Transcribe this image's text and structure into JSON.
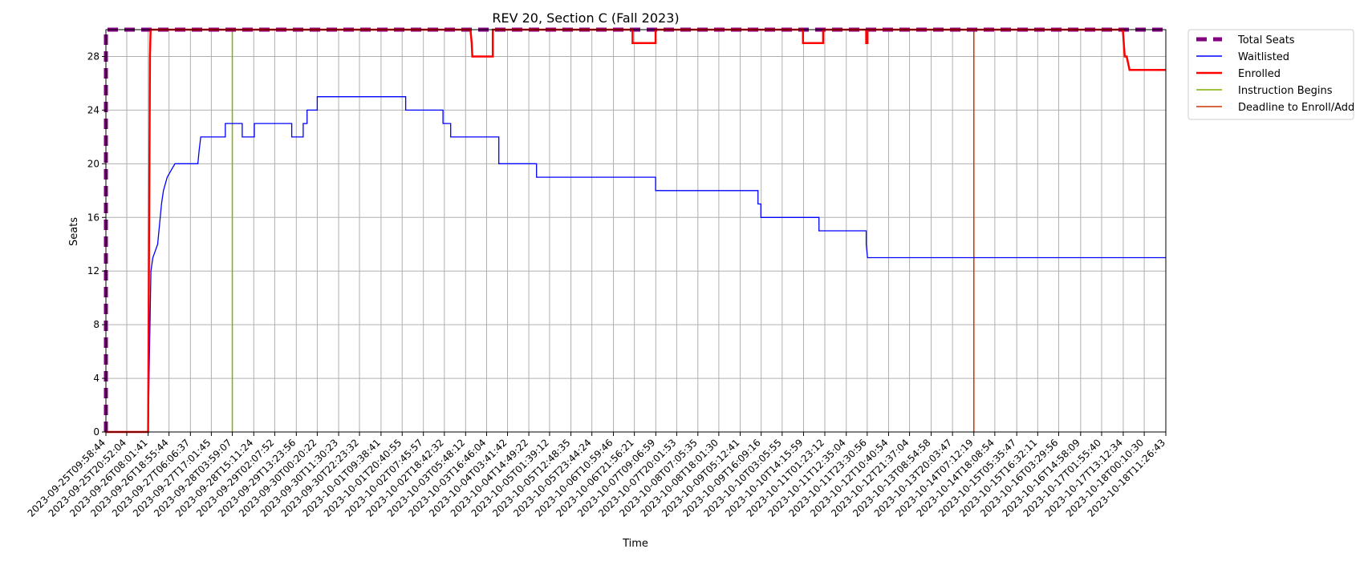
{
  "chart_data": {
    "type": "line",
    "title": "REV 20, Section C (Fall 2023)",
    "xlabel": "Time",
    "ylabel": "Seats",
    "xlim": [
      "2023-09-25T09:58:44",
      "2023-10-18T11:26:43"
    ],
    "ylim": [
      0,
      30
    ],
    "yticks": [
      0,
      4,
      8,
      12,
      16,
      20,
      24,
      28
    ],
    "xtick_labels": [
      "2023-09-25T09:58:44",
      "2023-09-25T20:52:04",
      "2023-09-26T08:01:41",
      "2023-09-26T18:55:44",
      "2023-09-27T06:06:37",
      "2023-09-27T17:01:45",
      "2023-09-28T03:59:07",
      "2023-09-28T15:11:24",
      "2023-09-29T02:07:52",
      "2023-09-29T13:23:56",
      "2023-09-30T00:20:22",
      "2023-09-30T11:30:23",
      "2023-09-30T22:23:32",
      "2023-10-01T09:38:41",
      "2023-10-01T20:40:55",
      "2023-10-02T07:45:57",
      "2023-10-02T18:42:32",
      "2023-10-03T05:48:12",
      "2023-10-03T16:46:04",
      "2023-10-04T03:41:42",
      "2023-10-04T14:49:22",
      "2023-10-05T01:39:12",
      "2023-10-05T12:48:35",
      "2023-10-05T23:44:24",
      "2023-10-06T10:59:46",
      "2023-10-06T21:56:21",
      "2023-10-07T09:06:59",
      "2023-10-07T20:01:53",
      "2023-10-08T07:05:35",
      "2023-10-08T18:01:30",
      "2023-10-09T05:12:41",
      "2023-10-09T16:09:16",
      "2023-10-10T03:05:55",
      "2023-10-10T14:15:59",
      "2023-10-11T01:23:12",
      "2023-10-11T12:35:04",
      "2023-10-11T23:30:56",
      "2023-10-12T10:40:54",
      "2023-10-12T21:37:04",
      "2023-10-13T08:54:58",
      "2023-10-13T20:03:47",
      "2023-10-14T07:12:19",
      "2023-10-14T18:08:54",
      "2023-10-15T05:35:47",
      "2023-10-15T16:32:11",
      "2023-10-16T03:29:56",
      "2023-10-16T14:58:09",
      "2023-10-17T01:55:40",
      "2023-10-17T13:12:34",
      "2023-10-18T00:10:30",
      "2023-10-18T11:26:43"
    ],
    "grid": true,
    "legend_position": "outside-top-right",
    "series": [
      {
        "name": "Total Seats",
        "color": "#800080",
        "style": "dashed",
        "points": [
          {
            "x": "2023-09-25T09:58:44",
            "y": 0
          },
          {
            "x": "2023-09-25T09:58:44",
            "y": 30
          },
          {
            "x": "2023-10-18T11:26:43",
            "y": 30
          }
        ]
      },
      {
        "name": "Waitlisted",
        "color": "#0000ff",
        "style": "solid",
        "points": [
          {
            "x": "2023-09-25T09:58:44",
            "y": 0
          },
          {
            "x": "2023-09-26T08:00:00",
            "y": 0
          },
          {
            "x": "2023-09-26T09:30:00",
            "y": 12
          },
          {
            "x": "2023-09-26T10:30:00",
            "y": 13
          },
          {
            "x": "2023-09-26T13:00:00",
            "y": 14
          },
          {
            "x": "2023-09-26T15:00:00",
            "y": 17
          },
          {
            "x": "2023-09-26T16:00:00",
            "y": 18
          },
          {
            "x": "2023-09-26T18:00:00",
            "y": 19
          },
          {
            "x": "2023-09-26T22:00:00",
            "y": 20
          },
          {
            "x": "2023-09-27T10:00:00",
            "y": 20
          },
          {
            "x": "2023-09-27T10:40:00",
            "y": 21
          },
          {
            "x": "2023-09-27T11:30:00",
            "y": 22
          },
          {
            "x": "2023-09-28T00:20:00",
            "y": 22
          },
          {
            "x": "2023-09-28T00:20:00",
            "y": 23
          },
          {
            "x": "2023-09-28T09:10:00",
            "y": 23
          },
          {
            "x": "2023-09-28T09:10:00",
            "y": 22
          },
          {
            "x": "2023-09-28T15:30:00",
            "y": 22
          },
          {
            "x": "2023-09-28T15:30:00",
            "y": 23
          },
          {
            "x": "2023-09-29T11:00:00",
            "y": 23
          },
          {
            "x": "2023-09-29T11:00:00",
            "y": 22
          },
          {
            "x": "2023-09-29T17:00:00",
            "y": 22
          },
          {
            "x": "2023-09-29T17:00:00",
            "y": 23
          },
          {
            "x": "2023-09-29T19:00:00",
            "y": 23
          },
          {
            "x": "2023-09-29T19:00:00",
            "y": 24
          },
          {
            "x": "2023-09-30T00:20:00",
            "y": 24
          },
          {
            "x": "2023-09-30T00:20:00",
            "y": 25
          },
          {
            "x": "2023-10-01T22:30:00",
            "y": 25
          },
          {
            "x": "2023-10-01T22:30:00",
            "y": 24
          },
          {
            "x": "2023-10-02T18:00:00",
            "y": 24
          },
          {
            "x": "2023-10-02T18:00:00",
            "y": 23
          },
          {
            "x": "2023-10-02T22:00:00",
            "y": 23
          },
          {
            "x": "2023-10-02T22:00:00",
            "y": 22
          },
          {
            "x": "2023-10-03T23:10:00",
            "y": 22
          },
          {
            "x": "2023-10-03T23:10:00",
            "y": 20
          },
          {
            "x": "2023-10-04T18:50:00",
            "y": 20
          },
          {
            "x": "2023-10-04T18:50:00",
            "y": 19
          },
          {
            "x": "2023-10-07T09:00:00",
            "y": 19
          },
          {
            "x": "2023-10-07T09:00:00",
            "y": 18
          },
          {
            "x": "2023-10-09T14:30:00",
            "y": 18
          },
          {
            "x": "2023-10-09T14:30:00",
            "y": 17
          },
          {
            "x": "2023-10-09T16:00:00",
            "y": 17
          },
          {
            "x": "2023-10-09T16:00:00",
            "y": 16
          },
          {
            "x": "2023-10-10T22:20:00",
            "y": 16
          },
          {
            "x": "2023-10-10T22:20:00",
            "y": 15
          },
          {
            "x": "2023-10-11T23:00:00",
            "y": 15
          },
          {
            "x": "2023-10-11T23:00:00",
            "y": 14
          },
          {
            "x": "2023-10-11T23:40:00",
            "y": 13
          },
          {
            "x": "2023-10-18T11:26:43",
            "y": 13
          }
        ]
      },
      {
        "name": "Enrolled",
        "color": "#ff0000",
        "style": "solid",
        "points": [
          {
            "x": "2023-09-25T09:58:44",
            "y": 0
          },
          {
            "x": "2023-09-26T08:00:00",
            "y": 0
          },
          {
            "x": "2023-09-26T09:00:00",
            "y": 28
          },
          {
            "x": "2023-09-26T09:20:00",
            "y": 30
          },
          {
            "x": "2023-10-03T08:20:00",
            "y": 30
          },
          {
            "x": "2023-10-03T09:00:00",
            "y": 29
          },
          {
            "x": "2023-10-03T09:20:00",
            "y": 28
          },
          {
            "x": "2023-10-03T20:00:00",
            "y": 28
          },
          {
            "x": "2023-10-03T20:00:00",
            "y": 30
          },
          {
            "x": "2023-10-06T21:00:00",
            "y": 30
          },
          {
            "x": "2023-10-06T21:00:00",
            "y": 29
          },
          {
            "x": "2023-10-07T09:00:00",
            "y": 29
          },
          {
            "x": "2023-10-07T09:00:00",
            "y": 30
          },
          {
            "x": "2023-10-10T14:00:00",
            "y": 30
          },
          {
            "x": "2023-10-10T14:00:00",
            "y": 29
          },
          {
            "x": "2023-10-11T00:30:00",
            "y": 29
          },
          {
            "x": "2023-10-11T00:30:00",
            "y": 30
          },
          {
            "x": "2023-10-11T23:00:00",
            "y": 30
          },
          {
            "x": "2023-10-11T23:00:00",
            "y": 29
          },
          {
            "x": "2023-10-11T23:40:00",
            "y": 29
          },
          {
            "x": "2023-10-11T23:40:00",
            "y": 30
          },
          {
            "x": "2023-10-17T13:00:00",
            "y": 30
          },
          {
            "x": "2023-10-17T14:00:00",
            "y": 28
          },
          {
            "x": "2023-10-17T15:00:00",
            "y": 28
          },
          {
            "x": "2023-10-17T16:30:00",
            "y": 27
          },
          {
            "x": "2023-10-18T11:26:43",
            "y": 27
          }
        ]
      }
    ],
    "vlines": [
      {
        "name": "Instruction Begins",
        "color": "#7fb200",
        "x": "2023-09-28T03:59:07"
      },
      {
        "name": "Deadline to Enroll/Add",
        "color": "#cc3300",
        "x": "2023-10-14T07:12:19"
      }
    ],
    "legend": [
      {
        "label": "Total Seats",
        "color": "#800080",
        "style": "dashed"
      },
      {
        "label": "Waitlisted",
        "color": "#0000ff",
        "style": "thin"
      },
      {
        "label": "Enrolled",
        "color": "#ff0000",
        "style": "thick"
      },
      {
        "label": "Instruction Begins",
        "color": "#7fb200",
        "style": "thin"
      },
      {
        "label": "Deadline to Enroll/Add",
        "color": "#cc3300",
        "style": "thin"
      }
    ]
  }
}
